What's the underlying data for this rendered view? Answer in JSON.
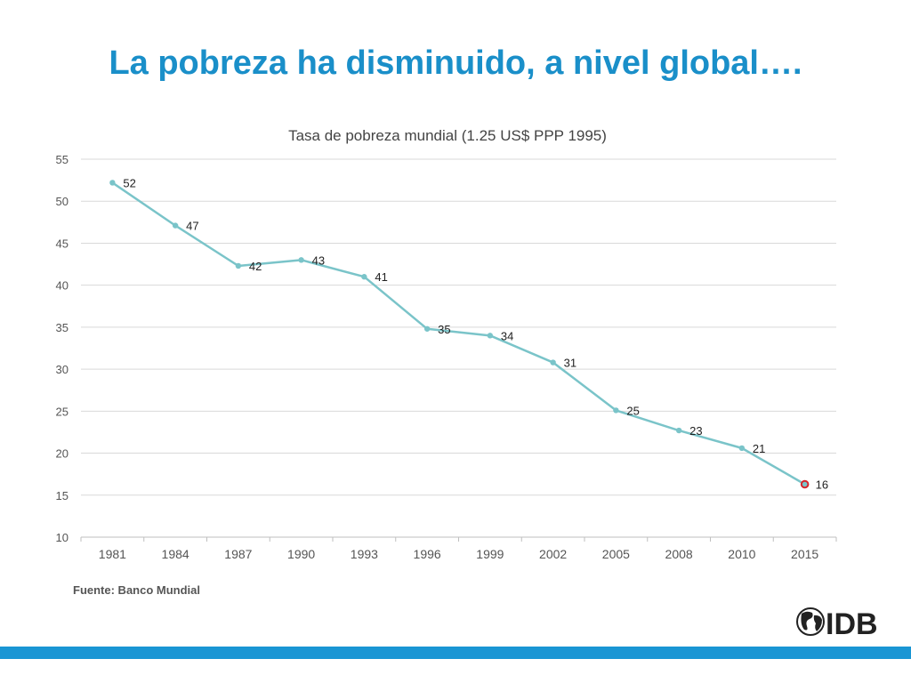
{
  "slide": {
    "title": "La pobreza ha disminuido, a nivel global….",
    "source": "Fuente: Banco Mundial",
    "logo_text": "IDB"
  },
  "colors": {
    "title": "#1a8fc9",
    "line": "#7ac4c9",
    "highlight_point": "#d6262b",
    "bar": "#1a96d4"
  },
  "chart_data": {
    "type": "line",
    "title": "Tasa de pobreza mundial (1.25 US$ PPP 1995)",
    "xlabel": "",
    "ylabel": "",
    "categories": [
      "1981",
      "1984",
      "1987",
      "1990",
      "1993",
      "1996",
      "1999",
      "2002",
      "2005",
      "2008",
      "2010",
      "2015"
    ],
    "series": [
      {
        "values": [
          52.2,
          47.1,
          42.3,
          43.0,
          41.0,
          34.8,
          34.0,
          30.8,
          25.1,
          22.7,
          20.6,
          16.3
        ],
        "labels": [
          "52",
          "47",
          "42",
          "43",
          "41",
          "35",
          "34",
          "31",
          "25",
          "23",
          "21",
          "16"
        ]
      }
    ],
    "ylim": [
      10,
      55
    ],
    "yticks": [
      10,
      15,
      20,
      25,
      30,
      35,
      40,
      45,
      50,
      55
    ],
    "grid": true,
    "legend": "none",
    "highlight_last_point": true
  }
}
